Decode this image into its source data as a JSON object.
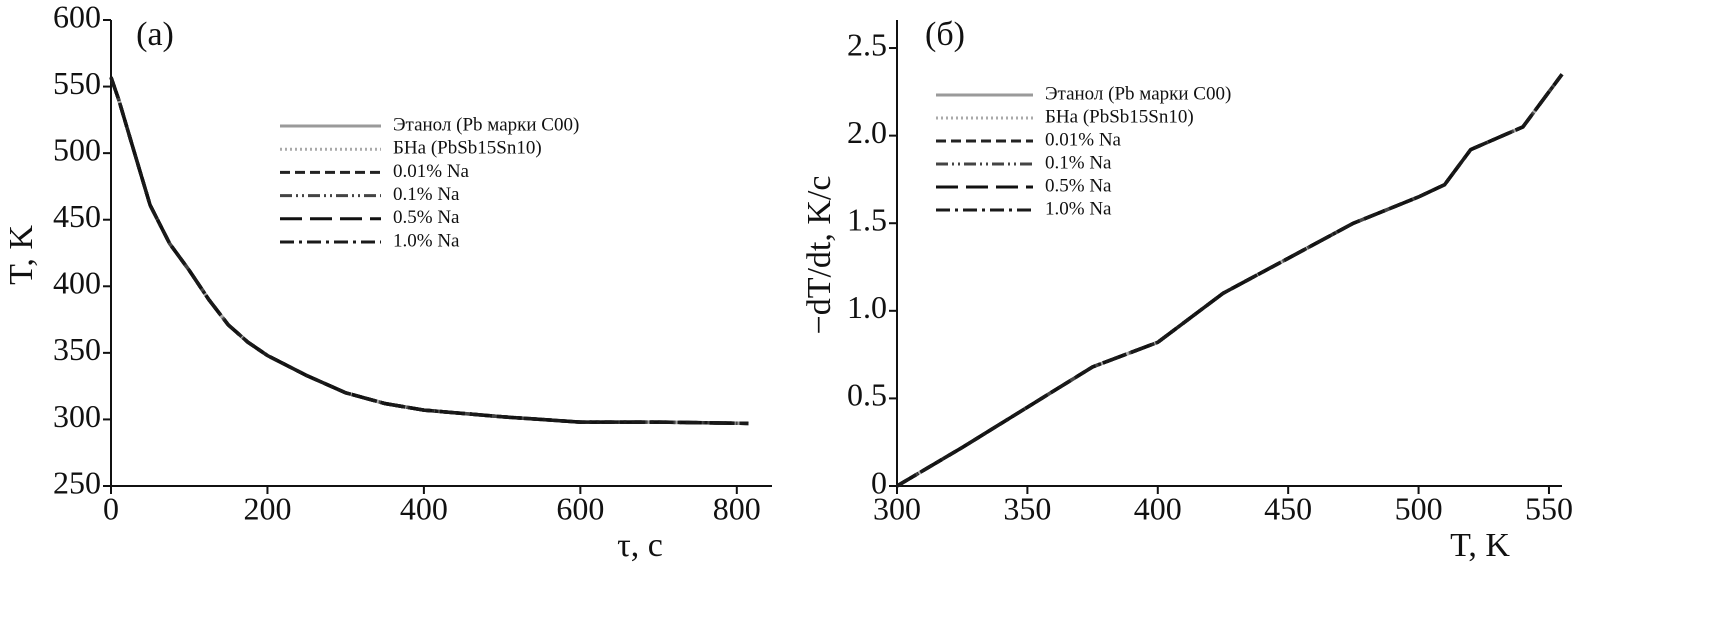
{
  "chart_data": [
    {
      "type": "line",
      "panel_label": "(а)",
      "x_label": "τ, с",
      "y_label": "T, K",
      "x": [
        0,
        10,
        25,
        50,
        75,
        100,
        125,
        150,
        175,
        200,
        250,
        300,
        350,
        400,
        500,
        600,
        700,
        815
      ],
      "xlim": [
        0,
        845
      ],
      "xticks": [
        0,
        200,
        400,
        600,
        800
      ],
      "ylim": [
        250,
        600
      ],
      "yticks": [
        250,
        300,
        350,
        400,
        450,
        500,
        550,
        600
      ],
      "series": [
        {
          "name": "Этанол (Pb марки С00)",
          "color": "#9a9a9a",
          "style": "solid",
          "values": [
            557,
            540,
            510,
            461,
            432,
            412,
            390,
            371,
            358,
            348,
            333,
            320,
            312,
            307,
            302,
            298,
            298,
            297
          ]
        },
        {
          "name": "БНа (PbSb15Sn10)",
          "color": "#aaaaaa",
          "style": "dotted",
          "values": [
            557,
            540,
            510,
            461,
            432,
            412,
            390,
            371,
            358,
            348,
            333,
            320,
            312,
            307,
            302,
            298,
            298,
            297
          ]
        },
        {
          "name": "0.01% Na",
          "color": "#222222",
          "style": "dashed",
          "values": [
            557,
            540,
            510,
            461,
            432,
            412,
            390,
            371,
            358,
            348,
            333,
            320,
            312,
            307,
            302,
            298,
            298,
            297
          ]
        },
        {
          "name": "0.1% Na",
          "color": "#444444",
          "style": "dashdotdot",
          "values": [
            557,
            540,
            510,
            461,
            432,
            412,
            390,
            371,
            358,
            348,
            333,
            320,
            312,
            307,
            302,
            298,
            298,
            297
          ]
        },
        {
          "name": "0.5% Na",
          "color": "#111111",
          "style": "longdash",
          "values": [
            557,
            540,
            510,
            461,
            432,
            412,
            390,
            371,
            358,
            348,
            333,
            320,
            312,
            307,
            302,
            298,
            298,
            297
          ]
        },
        {
          "name": "1.0% Na",
          "color": "#1a1a1a",
          "style": "dashdot",
          "values": [
            557,
            540,
            510,
            461,
            432,
            412,
            390,
            371,
            358,
            348,
            333,
            320,
            312,
            307,
            302,
            298,
            298,
            297
          ]
        }
      ]
    },
    {
      "type": "line",
      "panel_label": "(б)",
      "x_label": "T, K",
      "y_label": "−dT/dt, K/с",
      "x": [
        300,
        325,
        350,
        375,
        400,
        425,
        450,
        475,
        500,
        510,
        520,
        540,
        555
      ],
      "xlim": [
        300,
        555
      ],
      "xticks": [
        300,
        350,
        400,
        450,
        500,
        550
      ],
      "ylim": [
        0,
        2.66
      ],
      "yticks": [
        0,
        0.5,
        {
          "value": 1,
          "label": "1.0"
        },
        1.5,
        {
          "value": 2,
          "label": "2.0"
        },
        2.5
      ],
      "series": [
        {
          "name": "Этанол (Pb марки С00)",
          "color": "#9a9a9a",
          "style": "solid",
          "values": [
            0,
            0.22,
            0.45,
            0.68,
            0.82,
            1.1,
            1.3,
            1.5,
            1.65,
            1.72,
            1.92,
            2.05,
            2.35
          ]
        },
        {
          "name": "БНа (PbSb15Sn10)",
          "color": "#aaaaaa",
          "style": "dotted",
          "values": [
            0,
            0.22,
            0.45,
            0.68,
            0.82,
            1.1,
            1.3,
            1.5,
            1.65,
            1.72,
            1.92,
            2.05,
            2.35
          ]
        },
        {
          "name": "0.01% Na",
          "color": "#222222",
          "style": "dashed",
          "values": [
            0,
            0.22,
            0.45,
            0.68,
            0.82,
            1.1,
            1.3,
            1.5,
            1.65,
            1.72,
            1.92,
            2.05,
            2.35
          ]
        },
        {
          "name": "0.1% Na",
          "color": "#444444",
          "style": "dashdotdot",
          "values": [
            0,
            0.22,
            0.45,
            0.68,
            0.82,
            1.1,
            1.3,
            1.5,
            1.65,
            1.72,
            1.92,
            2.05,
            2.35
          ]
        },
        {
          "name": "0.5% Na",
          "color": "#111111",
          "style": "longdash",
          "values": [
            0,
            0.22,
            0.45,
            0.68,
            0.82,
            1.1,
            1.3,
            1.5,
            1.65,
            1.72,
            1.92,
            2.05,
            2.35
          ]
        },
        {
          "name": "1.0% Na",
          "color": "#1a1a1a",
          "style": "dashdot",
          "values": [
            0,
            0.22,
            0.45,
            0.68,
            0.82,
            1.1,
            1.3,
            1.5,
            1.65,
            1.72,
            1.92,
            2.05,
            2.35
          ]
        }
      ]
    }
  ]
}
